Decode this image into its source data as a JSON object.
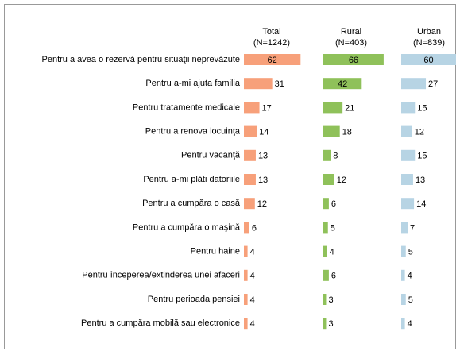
{
  "chart_data": {
    "type": "bar",
    "categories": [
      "Pentru a avea o rezervă pentru situaţii neprevăzute",
      "Pentru a-mi ajuta familia",
      "Pentru tratamente medicale",
      "Pentru a renova locuinţa",
      "Pentru vacanţă",
      "Pentru a-mi plăti datoriile",
      "Pentru a cumpăra o casă",
      "Pentru a cumpăra o maşină",
      "Pentru haine",
      "Pentru începerea/extinderea unei afaceri",
      "Pentru perioada pensiei",
      "Pentru a cumpăra mobilă sau electronice"
    ],
    "series": [
      {
        "name": "Total",
        "sample": "(N=1242)",
        "color": "#f7a07a",
        "values": [
          62,
          31,
          17,
          14,
          13,
          13,
          12,
          6,
          4,
          4,
          4,
          4
        ]
      },
      {
        "name": "Rural",
        "sample": "(N=403)",
        "color": "#8fc15a",
        "values": [
          66,
          42,
          21,
          18,
          8,
          12,
          6,
          5,
          4,
          6,
          3,
          3
        ]
      },
      {
        "name": "Urban",
        "sample": "(N=839)",
        "color": "#b7d4e4",
        "values": [
          60,
          27,
          15,
          12,
          15,
          13,
          14,
          7,
          5,
          4,
          5,
          4
        ]
      }
    ]
  }
}
